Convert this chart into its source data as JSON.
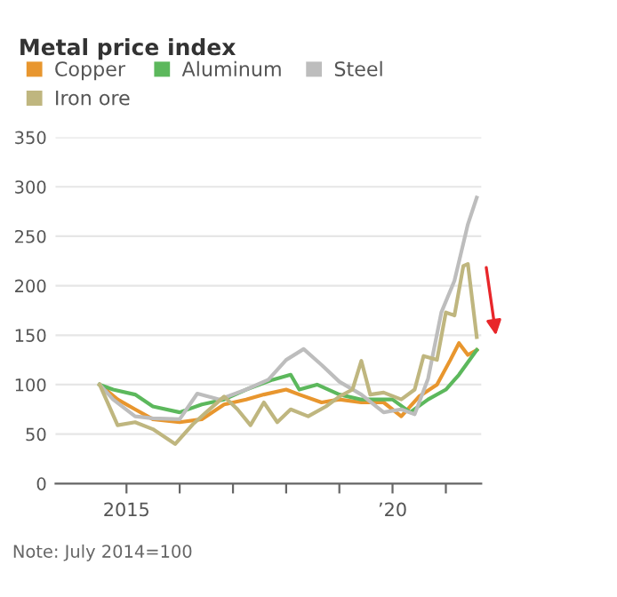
{
  "chart_data": {
    "type": "line",
    "title": "Metal price index",
    "series": [
      {
        "name": "Copper",
        "color": "#e8962e",
        "x": [
          "2014-07",
          "2014-11",
          "2015-03",
          "2015-07",
          "2016-01",
          "2016-06",
          "2016-11",
          "2017-04",
          "2017-08",
          "2018-01",
          "2018-04",
          "2018-09",
          "2019-01",
          "2019-06",
          "2019-11",
          "2020-03",
          "2020-07",
          "2020-11",
          "2021-02",
          "2021-04",
          "2021-06",
          "2021-08"
        ],
        "values": [
          100,
          85,
          75,
          65,
          62,
          65,
          80,
          85,
          90,
          95,
          90,
          82,
          85,
          82,
          82,
          68,
          88,
          100,
          125,
          142,
          130,
          135
        ]
      },
      {
        "name": "Aluminum",
        "color": "#5cb85c",
        "x": [
          "2014-07",
          "2014-10",
          "2015-03",
          "2015-07",
          "2016-01",
          "2016-06",
          "2016-11",
          "2017-04",
          "2017-10",
          "2018-02",
          "2018-04",
          "2018-08",
          "2019-01",
          "2019-06",
          "2020-01",
          "2020-05",
          "2020-09",
          "2021-01",
          "2021-04",
          "2021-08"
        ],
        "values": [
          100,
          95,
          90,
          78,
          72,
          80,
          85,
          95,
          105,
          110,
          95,
          100,
          90,
          85,
          85,
          72,
          85,
          95,
          110,
          135
        ]
      },
      {
        "name": "Steel",
        "color": "#bdbdbd",
        "x": [
          "2014-07",
          "2014-10",
          "2015-03",
          "2015-07",
          "2016-01",
          "2016-05",
          "2016-10",
          "2017-04",
          "2017-09",
          "2018-01",
          "2018-05",
          "2018-09",
          "2019-01",
          "2019-06",
          "2019-11",
          "2020-03",
          "2020-06",
          "2020-09",
          "2020-12",
          "2021-03",
          "2021-06",
          "2021-08"
        ],
        "values": [
          100,
          85,
          68,
          66,
          65,
          91,
          85,
          95,
          105,
          125,
          136,
          120,
          103,
          90,
          72,
          75,
          70,
          106,
          173,
          205,
          262,
          289
        ]
      },
      {
        "name": "Iron ore",
        "color": "#bfb67f",
        "x": [
          "2014-07",
          "2014-11",
          "2015-03",
          "2015-07",
          "2015-12",
          "2016-04",
          "2016-07",
          "2016-11",
          "2017-02",
          "2017-05",
          "2017-08",
          "2017-11",
          "2018-02",
          "2018-06",
          "2018-10",
          "2019-01",
          "2019-04",
          "2019-06",
          "2019-08",
          "2019-11",
          "2020-03",
          "2020-06",
          "2020-08",
          "2020-11",
          "2021-01",
          "2021-03",
          "2021-05",
          "2021-06",
          "2021-08"
        ],
        "values": [
          100,
          59,
          62,
          55,
          40,
          60,
          72,
          88,
          75,
          59,
          82,
          62,
          75,
          68,
          78,
          88,
          95,
          124,
          90,
          92,
          85,
          95,
          129,
          125,
          173,
          170,
          220,
          222,
          148
        ]
      }
    ],
    "xlim": [
      "2013-09",
      "2021-09"
    ],
    "xticks": [
      {
        "value": "2015-01",
        "label": "2015"
      },
      {
        "value": "2016-01",
        "label": null
      },
      {
        "value": "2017-01",
        "label": null
      },
      {
        "value": "2018-01",
        "label": null
      },
      {
        "value": "2019-01",
        "label": null
      },
      {
        "value": "2020-01",
        "label": "’20"
      },
      {
        "value": "2021-01",
        "label": null
      }
    ],
    "ylim": [
      0,
      350
    ],
    "yticks": [
      0,
      50,
      100,
      150,
      200,
      250,
      300,
      350
    ],
    "grid": "y",
    "legend": "top left",
    "line_style": "solid",
    "annotations": [
      "Note: July 2014=100"
    ]
  }
}
